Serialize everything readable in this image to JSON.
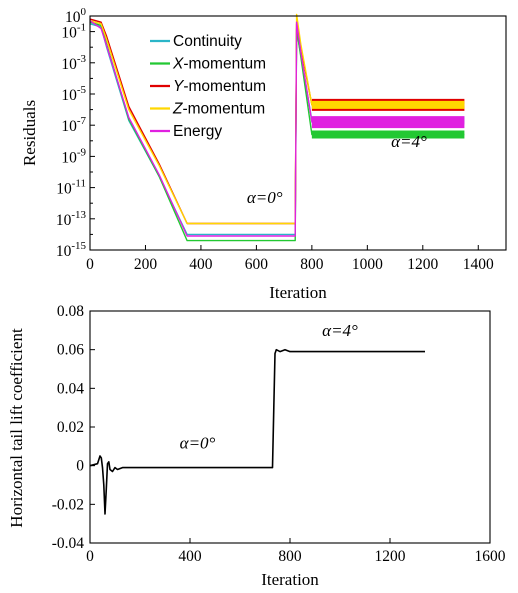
{
  "chart_data": [
    {
      "type": "line",
      "ylabel": "Residuals",
      "xlabel": "Iteration",
      "xlim": [
        0,
        1500
      ],
      "ylim_log10": [
        -15,
        0
      ],
      "y_scale": "log",
      "x_ticks": [
        0,
        200,
        400,
        600,
        800,
        1000,
        1200,
        1400
      ],
      "x_tick_labels": [
        "0",
        "200",
        "400",
        "600",
        "800",
        "1000",
        "1200",
        "1400"
      ],
      "y_ticks_exp": [
        0,
        -1,
        -3,
        -5,
        -7,
        -9,
        -11,
        -13,
        -15
      ],
      "y_tick_base": "10",
      "y_tick_labels": [
        "0",
        "-1",
        "-3",
        "-5",
        "-7",
        "-9",
        "-11",
        "-13",
        "-15"
      ],
      "legend_placement": "top-left",
      "annotations": [
        {
          "text": "α=0°",
          "x": 630,
          "y_log10": -12
        },
        {
          "text": "α=4°",
          "x": 1150,
          "y_log10": -8.4
        }
      ],
      "series": [
        {
          "name": "Continuity",
          "color": "#2bb5c8",
          "x": [
            0,
            40,
            60,
            140,
            250,
            350,
            500,
            740,
            745,
            760,
            800,
            1350
          ],
          "log10_y": [
            -0.5,
            -0.7,
            -2.0,
            -6.7,
            -10.3,
            -14.0,
            -14.0,
            -14.0,
            -0.9,
            -2.5,
            -6.7,
            -6.7
          ]
        },
        {
          "name": "X-momentum",
          "color": "#22c832",
          "x": [
            0,
            40,
            60,
            140,
            250,
            350,
            500,
            740,
            745,
            760,
            800,
            1350
          ],
          "log10_y": [
            -0.4,
            -0.6,
            -1.8,
            -6.6,
            -10.3,
            -14.4,
            -14.4,
            -14.4,
            -0.8,
            -2.6,
            -7.6,
            -7.6
          ]
        },
        {
          "name": "Y-momentum",
          "color": "#e00000",
          "x": [
            0,
            40,
            60,
            140,
            250,
            350,
            500,
            740,
            745,
            760,
            800,
            1350
          ],
          "log10_y": [
            -0.2,
            -0.4,
            -1.3,
            -5.8,
            -9.5,
            -13.3,
            -13.3,
            -13.3,
            -0.5,
            -2.0,
            -5.7,
            -5.7
          ]
        },
        {
          "name": "Z-momentum",
          "color": "#ffd700",
          "x": [
            0,
            40,
            60,
            140,
            250,
            350,
            500,
            740,
            745,
            760,
            800,
            1350
          ],
          "log10_y": [
            -0.3,
            -0.5,
            -1.5,
            -6.0,
            -9.6,
            -13.3,
            -13.3,
            -13.3,
            0.1,
            -1.8,
            -5.7,
            -5.7
          ]
        },
        {
          "name": "Energy",
          "color": "#e020e0",
          "x": [
            0,
            40,
            60,
            140,
            250,
            350,
            500,
            740,
            745,
            760,
            800,
            1350
          ],
          "log10_y": [
            -0.3,
            -0.8,
            -1.9,
            -6.5,
            -10.2,
            -14.1,
            -14.1,
            -14.1,
            -0.4,
            -2.3,
            -6.8,
            -6.8
          ]
        }
      ]
    },
    {
      "type": "line",
      "ylabel": "Horizontal tail lift coefficient",
      "xlabel": "Iteration",
      "xlim": [
        0,
        1600
      ],
      "ylim": [
        -0.04,
        0.08
      ],
      "x_ticks": [
        0,
        400,
        800,
        1200,
        1600
      ],
      "x_tick_labels": [
        "0",
        "400",
        "800",
        "1200",
        "1600"
      ],
      "y_ticks": [
        -0.04,
        -0.02,
        0,
        0.02,
        0.04,
        0.06,
        0.08
      ],
      "y_tick_labels": [
        "-0.04",
        "-0.02",
        "0",
        "0.02",
        "0.04",
        "0.06",
        "0.08"
      ],
      "annotations": [
        {
          "text": "α=0°",
          "x": 430,
          "y": 0.009
        },
        {
          "text": "α=4°",
          "x": 1000,
          "y": 0.067
        }
      ],
      "series": [
        {
          "color": "#000000",
          "x": [
            0,
            30,
            40,
            45,
            50,
            55,
            60,
            65,
            70,
            75,
            80,
            90,
            100,
            110,
            130,
            150,
            200,
            400,
            600,
            730,
            735,
            740,
            745,
            760,
            780,
            800,
            820,
            900,
            1100,
            1340
          ],
          "y": [
            0,
            0.001,
            0.005,
            0.004,
            -0.001,
            -0.01,
            -0.025,
            -0.012,
            0.001,
            0.002,
            -0.002,
            -0.003,
            -0.001,
            -0.002,
            -0.001,
            -0.001,
            -0.001,
            -0.001,
            -0.001,
            -0.001,
            0.03,
            0.058,
            0.06,
            0.059,
            0.06,
            0.059,
            0.059,
            0.059,
            0.059,
            0.059
          ]
        }
      ]
    }
  ]
}
